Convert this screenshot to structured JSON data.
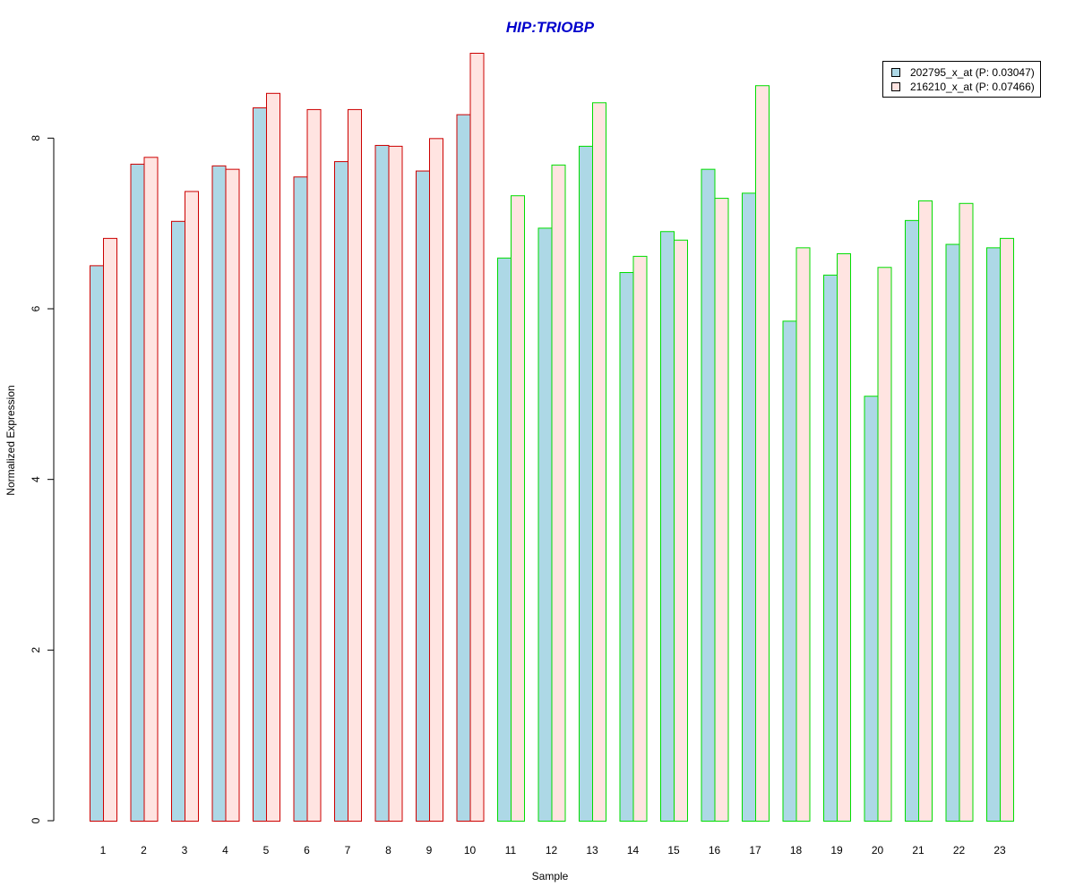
{
  "chart_data": {
    "type": "bar",
    "title": "HIP:TRIOBP",
    "xlabel": "Sample",
    "ylabel": "Normalized Expression",
    "ylim": [
      0,
      9
    ],
    "yticks": [
      0,
      2,
      4,
      6,
      8
    ],
    "grid": false,
    "legend_position": "top-right",
    "categories": [
      "1",
      "2",
      "3",
      "4",
      "5",
      "6",
      "7",
      "8",
      "9",
      "10",
      "11",
      "12",
      "13",
      "14",
      "15",
      "16",
      "17",
      "18",
      "19",
      "20",
      "21",
      "22",
      "23"
    ],
    "series": [
      {
        "name": "202795_x_at (P: 0.03047)",
        "fill": "#add8e6",
        "values": [
          6.51,
          7.7,
          7.03,
          7.68,
          8.36,
          7.55,
          7.73,
          7.92,
          7.62,
          8.28,
          6.6,
          6.95,
          7.91,
          6.43,
          6.91,
          7.64,
          7.36,
          5.86,
          6.4,
          4.98,
          7.04,
          6.76,
          6.72
        ]
      },
      {
        "name": "216210_x_at (P: 0.07466)",
        "fill": "#ffe4e1",
        "values": [
          6.83,
          7.78,
          7.38,
          7.64,
          8.53,
          8.34,
          8.34,
          7.91,
          8.0,
          9.0,
          7.33,
          7.69,
          8.42,
          6.62,
          6.81,
          7.3,
          8.62,
          6.72,
          6.65,
          6.49,
          7.27,
          7.24,
          6.83
        ]
      }
    ],
    "group_border_colors": [
      "#cc0000",
      "#cc0000",
      "#cc0000",
      "#cc0000",
      "#cc0000",
      "#cc0000",
      "#cc0000",
      "#cc0000",
      "#cc0000",
      "#cc0000",
      "#00dd00",
      "#00dd00",
      "#00dd00",
      "#00dd00",
      "#00dd00",
      "#00dd00",
      "#00dd00",
      "#00dd00",
      "#00dd00",
      "#00dd00",
      "#00dd00",
      "#00dd00",
      "#00dd00"
    ],
    "title_color": "#0000cc"
  }
}
